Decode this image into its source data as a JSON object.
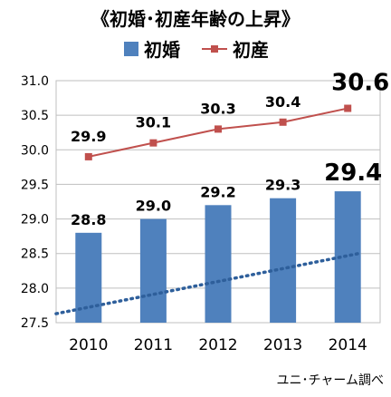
{
  "chart_data": {
    "type": "bar",
    "title": "《初婚･初産年齢の上昇》",
    "categories": [
      "2010",
      "2011",
      "2012",
      "2013",
      "2014"
    ],
    "series": [
      {
        "name": "初婚",
        "type": "bar",
        "values": [
          28.8,
          29.0,
          29.2,
          29.3,
          29.4
        ],
        "labels": [
          "28.8",
          "29.0",
          "29.2",
          "29.3",
          "29.4"
        ],
        "color": "#4f81bd"
      },
      {
        "name": "初産",
        "type": "line",
        "values": [
          29.9,
          30.1,
          30.3,
          30.4,
          30.6
        ],
        "labels": [
          "29.9",
          "30.1",
          "30.3",
          "30.4",
          "30.6"
        ],
        "color": "#c0504d"
      }
    ],
    "trendline": {
      "style": "dotted",
      "color": "#2e5f9b",
      "start": 27.63,
      "end": 28.5
    },
    "ylim": [
      27.5,
      31.0
    ],
    "ytick_labels": [
      "27.5",
      "28.0",
      "28.5",
      "29.0",
      "29.5",
      "30.0",
      "30.5",
      "31.0"
    ],
    "grid": true,
    "legend_position": "top"
  },
  "source_note": "ユニ･チャーム調べ"
}
